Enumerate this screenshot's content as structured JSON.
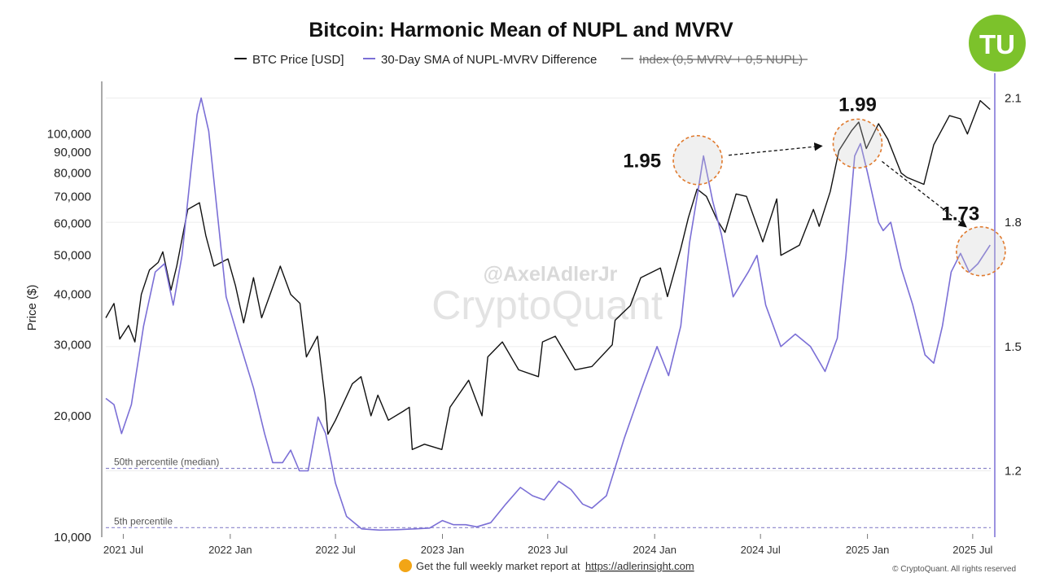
{
  "title": "Bitcoin: Harmonic Mean of NUPL and MVRV",
  "logo": {
    "text": "TU",
    "color": "#7cc22b"
  },
  "watermark": {
    "handle": "@AxelAdlerJr",
    "brand": "CryptoQuant"
  },
  "footer": {
    "text": "Get the full weekly market report at",
    "link": "https://adlerinsight.com",
    "copyright": "© CryptoQuant. All rights reserved"
  },
  "colors": {
    "price": "#111111",
    "sma": "#7b6fd6",
    "index": "#888888",
    "percentile": "#8b84c9",
    "circle": "#e07a2e"
  },
  "chart_data": {
    "type": "line",
    "title": "Bitcoin: Harmonic Mean of NUPL and MVRV",
    "ylabel": "Price ($)",
    "y_scale": "log",
    "ylim": [
      10000,
      135000
    ],
    "y2lim": [
      1.04,
      2.14
    ],
    "x_ticks": [
      "2021 Jul",
      "2022 Jan",
      "2022 Jul",
      "2023 Jan",
      "2023 Jul",
      "2024 Jan",
      "2024 Jul",
      "2025 Jan",
      "2025 Jul"
    ],
    "y_ticks": [
      "10,000",
      "20,000",
      "30,000",
      "40,000",
      "50,000",
      "60,000",
      "70,000",
      "80,000",
      "90,000",
      "100,000"
    ],
    "y2_ticks": [
      "1.2",
      "1.5",
      "1.8",
      "2.1"
    ],
    "legend": [
      {
        "label": "BTC Price [USD]",
        "style": "solid",
        "color": "#111111"
      },
      {
        "label": "30-Day SMA of NUPL-MVRV Difference",
        "style": "solid",
        "color": "#7b6fd6"
      },
      {
        "label": "Index (0,5 MVRV + 0,5 NUPL)",
        "style": "hidden",
        "color": "#888888"
      }
    ],
    "percentiles": [
      {
        "label": "50th percentile (median)",
        "value": 1.206
      },
      {
        "label": "5th percentile",
        "value": 1.063
      }
    ],
    "annotations": [
      {
        "label": "1.95",
        "date": "2024-03-15",
        "value": 1.95
      },
      {
        "label": "1.99",
        "date": "2024-12-15",
        "value": 1.99
      },
      {
        "label": "1.73",
        "date": "2025-07-15",
        "value": 1.73
      }
    ],
    "series": [
      {
        "name": "BTC Price [USD]",
        "axis": "left",
        "points": [
          [
            "2021-06-01",
            35000
          ],
          [
            "2021-06-15",
            38000
          ],
          [
            "2021-06-25",
            31000
          ],
          [
            "2021-07-10",
            33500
          ],
          [
            "2021-07-21",
            30500
          ],
          [
            "2021-08-01",
            40000
          ],
          [
            "2021-08-15",
            46000
          ],
          [
            "2021-08-30",
            48000
          ],
          [
            "2021-09-07",
            51000
          ],
          [
            "2021-09-21",
            41000
          ],
          [
            "2021-10-01",
            47000
          ],
          [
            "2021-10-20",
            65000
          ],
          [
            "2021-11-09",
            67500
          ],
          [
            "2021-11-20",
            56000
          ],
          [
            "2021-12-04",
            47000
          ],
          [
            "2021-12-28",
            49000
          ],
          [
            "2022-01-10",
            42000
          ],
          [
            "2022-01-24",
            34000
          ],
          [
            "2022-02-10",
            44000
          ],
          [
            "2022-02-24",
            35000
          ],
          [
            "2022-03-28",
            47000
          ],
          [
            "2022-04-15",
            40000
          ],
          [
            "2022-05-01",
            38000
          ],
          [
            "2022-05-12",
            28000
          ],
          [
            "2022-05-31",
            31500
          ],
          [
            "2022-06-13",
            22000
          ],
          [
            "2022-06-18",
            18000
          ],
          [
            "2022-07-01",
            19500
          ],
          [
            "2022-07-30",
            24000
          ],
          [
            "2022-08-14",
            25000
          ],
          [
            "2022-08-31",
            20000
          ],
          [
            "2022-09-12",
            22500
          ],
          [
            "2022-09-30",
            19500
          ],
          [
            "2022-10-25",
            20500
          ],
          [
            "2022-11-05",
            21000
          ],
          [
            "2022-11-10",
            16500
          ],
          [
            "2022-12-01",
            17000
          ],
          [
            "2022-12-31",
            16500
          ],
          [
            "2023-01-14",
            21000
          ],
          [
            "2023-02-15",
            24500
          ],
          [
            "2023-03-10",
            20000
          ],
          [
            "2023-03-20",
            28000
          ],
          [
            "2023-04-14",
            30500
          ],
          [
            "2023-05-12",
            26000
          ],
          [
            "2023-06-15",
            25000
          ],
          [
            "2023-06-22",
            30500
          ],
          [
            "2023-07-14",
            31500
          ],
          [
            "2023-08-17",
            26000
          ],
          [
            "2023-09-15",
            26500
          ],
          [
            "2023-10-20",
            30000
          ],
          [
            "2023-10-25",
            34500
          ],
          [
            "2023-11-20",
            37500
          ],
          [
            "2023-12-08",
            44000
          ],
          [
            "2024-01-11",
            46500
          ],
          [
            "2024-01-23",
            39500
          ],
          [
            "2024-02-15",
            52000
          ],
          [
            "2024-02-28",
            62000
          ],
          [
            "2024-03-14",
            73000
          ],
          [
            "2024-03-30",
            70000
          ],
          [
            "2024-04-18",
            61000
          ],
          [
            "2024-05-01",
            57000
          ],
          [
            "2024-05-20",
            71000
          ],
          [
            "2024-06-07",
            70000
          ],
          [
            "2024-07-05",
            54000
          ],
          [
            "2024-07-29",
            69000
          ],
          [
            "2024-08-05",
            50000
          ],
          [
            "2024-09-06",
            53000
          ],
          [
            "2024-09-30",
            65000
          ],
          [
            "2024-10-10",
            59000
          ],
          [
            "2024-10-29",
            72000
          ],
          [
            "2024-11-13",
            91000
          ],
          [
            "2024-12-05",
            102000
          ],
          [
            "2024-12-17",
            107000
          ],
          [
            "2024-12-30",
            92000
          ],
          [
            "2025-01-20",
            106000
          ],
          [
            "2025-02-05",
            97000
          ],
          [
            "2025-02-28",
            80000
          ],
          [
            "2025-03-10",
            78000
          ],
          [
            "2025-04-08",
            75000
          ],
          [
            "2025-04-25",
            94000
          ],
          [
            "2025-05-22",
            111000
          ],
          [
            "2025-06-10",
            109000
          ],
          [
            "2025-06-22",
            100000
          ],
          [
            "2025-07-14",
            121000
          ],
          [
            "2025-07-31",
            115000
          ]
        ]
      },
      {
        "name": "30-Day SMA of NUPL-MVRV Difference",
        "axis": "right",
        "points": [
          [
            "2021-06-01",
            1.375
          ],
          [
            "2021-06-15",
            1.36
          ],
          [
            "2021-06-28",
            1.29
          ],
          [
            "2021-07-15",
            1.36
          ],
          [
            "2021-08-05",
            1.55
          ],
          [
            "2021-08-25",
            1.68
          ],
          [
            "2021-09-10",
            1.7
          ],
          [
            "2021-09-25",
            1.6
          ],
          [
            "2021-10-10",
            1.72
          ],
          [
            "2021-10-25",
            1.92
          ],
          [
            "2021-11-05",
            2.06
          ],
          [
            "2021-11-12",
            2.1
          ],
          [
            "2021-11-25",
            2.02
          ],
          [
            "2021-12-10",
            1.82
          ],
          [
            "2021-12-25",
            1.62
          ],
          [
            "2022-01-15",
            1.52
          ],
          [
            "2022-02-10",
            1.4
          ],
          [
            "2022-03-01",
            1.29
          ],
          [
            "2022-03-15",
            1.22
          ],
          [
            "2022-04-01",
            1.22
          ],
          [
            "2022-04-15",
            1.25
          ],
          [
            "2022-04-30",
            1.2
          ],
          [
            "2022-05-15",
            1.2
          ],
          [
            "2022-06-01",
            1.33
          ],
          [
            "2022-06-14",
            1.29
          ],
          [
            "2022-07-01",
            1.17
          ],
          [
            "2022-07-20",
            1.09
          ],
          [
            "2022-08-15",
            1.06
          ],
          [
            "2022-09-15",
            1.057
          ],
          [
            "2022-10-15",
            1.058
          ],
          [
            "2022-11-15",
            1.06
          ],
          [
            "2022-12-10",
            1.062
          ],
          [
            "2023-01-01",
            1.08
          ],
          [
            "2023-01-20",
            1.07
          ],
          [
            "2023-02-10",
            1.07
          ],
          [
            "2023-03-01",
            1.065
          ],
          [
            "2023-03-25",
            1.075
          ],
          [
            "2023-04-20",
            1.12
          ],
          [
            "2023-05-15",
            1.16
          ],
          [
            "2023-06-05",
            1.14
          ],
          [
            "2023-06-25",
            1.13
          ],
          [
            "2023-07-20",
            1.175
          ],
          [
            "2023-08-10",
            1.155
          ],
          [
            "2023-08-30",
            1.12
          ],
          [
            "2023-09-15",
            1.11
          ],
          [
            "2023-10-10",
            1.14
          ],
          [
            "2023-11-10",
            1.28
          ],
          [
            "2023-12-10",
            1.4
          ],
          [
            "2024-01-05",
            1.5
          ],
          [
            "2024-01-25",
            1.43
          ],
          [
            "2024-02-15",
            1.55
          ],
          [
            "2024-03-01",
            1.75
          ],
          [
            "2024-03-15",
            1.87
          ],
          [
            "2024-03-25",
            1.96
          ],
          [
            "2024-04-10",
            1.85
          ],
          [
            "2024-04-25",
            1.77
          ],
          [
            "2024-05-15",
            1.62
          ],
          [
            "2024-06-10",
            1.68
          ],
          [
            "2024-06-25",
            1.72
          ],
          [
            "2024-07-10",
            1.6
          ],
          [
            "2024-08-05",
            1.5
          ],
          [
            "2024-08-30",
            1.53
          ],
          [
            "2024-09-25",
            1.5
          ],
          [
            "2024-10-20",
            1.44
          ],
          [
            "2024-11-10",
            1.52
          ],
          [
            "2024-11-25",
            1.72
          ],
          [
            "2024-12-10",
            1.96
          ],
          [
            "2024-12-20",
            1.99
          ],
          [
            "2025-01-01",
            1.92
          ],
          [
            "2025-01-20",
            1.8
          ],
          [
            "2025-01-28",
            1.78
          ],
          [
            "2025-02-10",
            1.8
          ],
          [
            "2025-02-28",
            1.69
          ],
          [
            "2025-03-20",
            1.6
          ],
          [
            "2025-04-10",
            1.48
          ],
          [
            "2025-04-25",
            1.46
          ],
          [
            "2025-05-10",
            1.55
          ],
          [
            "2025-05-25",
            1.68
          ],
          [
            "2025-06-10",
            1.725
          ],
          [
            "2025-06-25",
            1.68
          ],
          [
            "2025-07-10",
            1.7
          ],
          [
            "2025-07-31",
            1.745
          ]
        ]
      }
    ]
  }
}
